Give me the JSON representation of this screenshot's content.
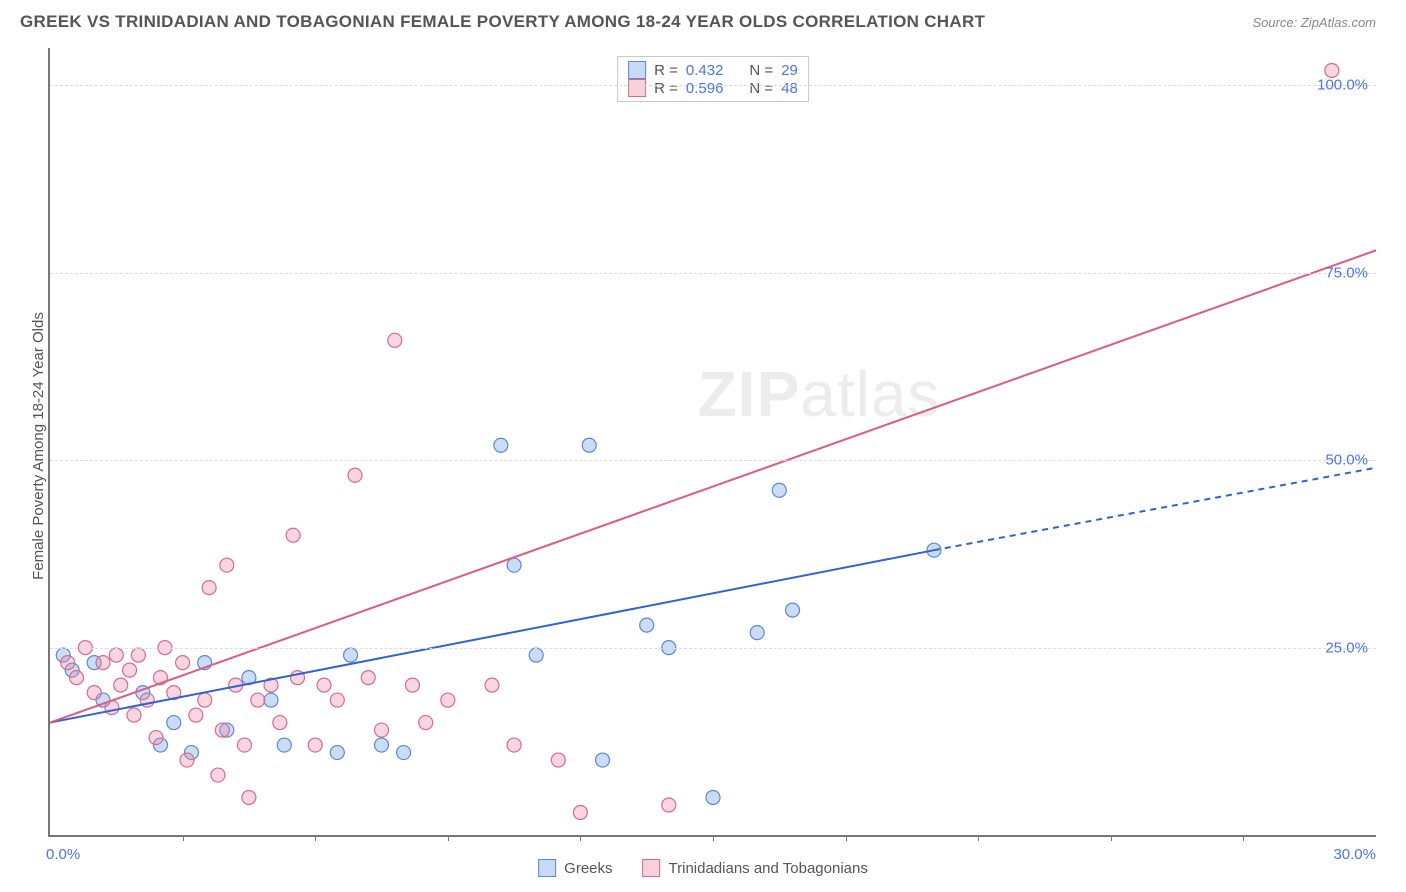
{
  "title": "GREEK VS TRINIDADIAN AND TOBAGONIAN FEMALE POVERTY AMONG 18-24 YEAR OLDS CORRELATION CHART",
  "source_label": "Source: ZipAtlas.com",
  "y_axis_label": "Female Poverty Among 18-24 Year Olds",
  "watermark": {
    "part1": "ZIP",
    "part2": "atlas"
  },
  "chart": {
    "type": "scatter",
    "xlim": [
      0,
      30
    ],
    "ylim": [
      0,
      105
    ],
    "x_origin_label": "0.0%",
    "x_end_label": "30.0%",
    "x_tick_positions": [
      3,
      6,
      9,
      12,
      15,
      18,
      21,
      24,
      27
    ],
    "y_ticks": [
      {
        "v": 25,
        "label": "25.0%"
      },
      {
        "v": 50,
        "label": "50.0%"
      },
      {
        "v": 75,
        "label": "75.0%"
      },
      {
        "v": 100,
        "label": "100.0%"
      }
    ],
    "background_color": "#ffffff",
    "grid_color": "#dcdcdc",
    "axis_color": "#777777",
    "tick_label_color": "#4a74e8",
    "marker_radius": 7,
    "marker_fill_opacity": 0.35,
    "series": [
      {
        "name": "Greeks",
        "color_fill": "#6a9ae6",
        "color_stroke": "#5b89d6",
        "R": "0.432",
        "N": "29",
        "trend": {
          "x1": 0,
          "y1": 15,
          "x2": 20,
          "y2": 38,
          "dash_to_x": 30,
          "dash_to_y": 49,
          "stroke": "#2f63d6",
          "width": 2
        },
        "points": [
          [
            0.3,
            24
          ],
          [
            0.5,
            22
          ],
          [
            1.2,
            18
          ],
          [
            1.0,
            23
          ],
          [
            2.1,
            19
          ],
          [
            2.5,
            12
          ],
          [
            2.8,
            15
          ],
          [
            3.2,
            11
          ],
          [
            3.5,
            23
          ],
          [
            4.0,
            14
          ],
          [
            4.5,
            21
          ],
          [
            5.0,
            18
          ],
          [
            5.3,
            12
          ],
          [
            6.5,
            11
          ],
          [
            6.8,
            24
          ],
          [
            7.5,
            12
          ],
          [
            8.0,
            11
          ],
          [
            10.2,
            52
          ],
          [
            10.5,
            36
          ],
          [
            11.0,
            24
          ],
          [
            12.2,
            52
          ],
          [
            12.5,
            10
          ],
          [
            13.5,
            28
          ],
          [
            14.0,
            25
          ],
          [
            16.0,
            27
          ],
          [
            16.5,
            46
          ],
          [
            16.8,
            30
          ],
          [
            15.0,
            5
          ],
          [
            20.0,
            38
          ]
        ]
      },
      {
        "name": "Trinidadians and Tobagonians",
        "color_fill": "#ec8aa8",
        "color_stroke": "#d96a8c",
        "R": "0.596",
        "N": "48",
        "trend": {
          "x1": 0,
          "y1": 15,
          "x2": 30,
          "y2": 78,
          "stroke": "#e05a82",
          "width": 2
        },
        "points": [
          [
            0.4,
            23
          ],
          [
            0.6,
            21
          ],
          [
            0.8,
            25
          ],
          [
            1.0,
            19
          ],
          [
            1.2,
            23
          ],
          [
            1.4,
            17
          ],
          [
            1.5,
            24
          ],
          [
            1.6,
            20
          ],
          [
            1.8,
            22
          ],
          [
            1.9,
            16
          ],
          [
            2.0,
            24
          ],
          [
            2.2,
            18
          ],
          [
            2.4,
            13
          ],
          [
            2.5,
            21
          ],
          [
            2.6,
            25
          ],
          [
            2.8,
            19
          ],
          [
            3.0,
            23
          ],
          [
            3.1,
            10
          ],
          [
            3.3,
            16
          ],
          [
            3.5,
            18
          ],
          [
            3.6,
            33
          ],
          [
            3.8,
            8
          ],
          [
            3.9,
            14
          ],
          [
            4.0,
            36
          ],
          [
            4.2,
            20
          ],
          [
            4.4,
            12
          ],
          [
            4.5,
            5
          ],
          [
            4.7,
            18
          ],
          [
            5.0,
            20
          ],
          [
            5.2,
            15
          ],
          [
            5.5,
            40
          ],
          [
            5.6,
            21
          ],
          [
            6.0,
            12
          ],
          [
            6.2,
            20
          ],
          [
            6.5,
            18
          ],
          [
            6.9,
            48
          ],
          [
            7.2,
            21
          ],
          [
            7.5,
            14
          ],
          [
            7.8,
            66
          ],
          [
            8.2,
            20
          ],
          [
            8.5,
            15
          ],
          [
            9.0,
            18
          ],
          [
            10.0,
            20
          ],
          [
            10.5,
            12
          ],
          [
            11.5,
            10
          ],
          [
            12.0,
            3
          ],
          [
            14.0,
            4
          ],
          [
            29.0,
            102
          ]
        ]
      }
    ]
  },
  "stats_legend": {
    "R_label": "R =",
    "N_label": "N ="
  },
  "bottom_legend": {
    "items": [
      "Greeks",
      "Trinidadians and Tobagonians"
    ]
  }
}
